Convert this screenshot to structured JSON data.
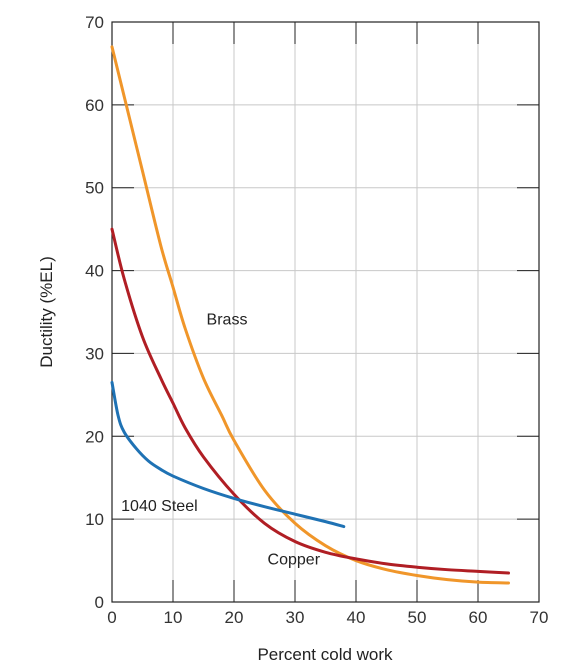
{
  "chart_data": {
    "type": "line",
    "xlabel": "Percent cold work",
    "ylabel": "Ductility (%EL)",
    "xlim": [
      0,
      70
    ],
    "ylim": [
      0,
      70
    ],
    "xticks": [
      "0",
      "10",
      "20",
      "30",
      "40",
      "50",
      "60",
      "70"
    ],
    "yticks": [
      "0",
      "10",
      "20",
      "30",
      "40",
      "50",
      "60",
      "70"
    ],
    "grid": true,
    "series": [
      {
        "name": "Brass",
        "color": "#f0962a",
        "x": [
          0,
          2,
          5,
          8,
          10,
          12,
          15,
          18,
          20,
          25,
          30,
          35,
          40,
          45,
          50,
          55,
          60,
          65
        ],
        "y": [
          67,
          61,
          52,
          43,
          38,
          33,
          27,
          22.5,
          19.5,
          13.5,
          9.5,
          6.8,
          5,
          3.9,
          3.2,
          2.7,
          2.4,
          2.3
        ]
      },
      {
        "name": "Copper",
        "color": "#b01e24",
        "x": [
          0,
          2,
          5,
          8,
          10,
          12,
          15,
          20,
          25,
          30,
          35,
          40,
          45,
          50,
          55,
          60,
          65
        ],
        "y": [
          45,
          39,
          32,
          27,
          24,
          21,
          17.5,
          13,
          9.5,
          7.3,
          6,
          5.2,
          4.6,
          4.2,
          3.9,
          3.7,
          3.5
        ]
      },
      {
        "name": "1040 Steel",
        "color": "#1f72b4",
        "x": [
          0,
          1,
          2,
          4,
          6,
          8,
          10,
          15,
          20,
          25,
          30,
          35,
          38
        ],
        "y": [
          26.5,
          22.5,
          20.5,
          18.5,
          17,
          16,
          15.2,
          13.7,
          12.5,
          11.5,
          10.6,
          9.7,
          9.1
        ]
      }
    ],
    "labels": [
      {
        "text": "Brass",
        "series": "Brass",
        "x": 15.5,
        "y": 33.5
      },
      {
        "text": "Copper",
        "series": "Copper",
        "x": 25.5,
        "y": 4.5
      },
      {
        "text": "1040 Steel",
        "series": "1040 Steel",
        "x": 1.5,
        "y": 11
      }
    ]
  }
}
